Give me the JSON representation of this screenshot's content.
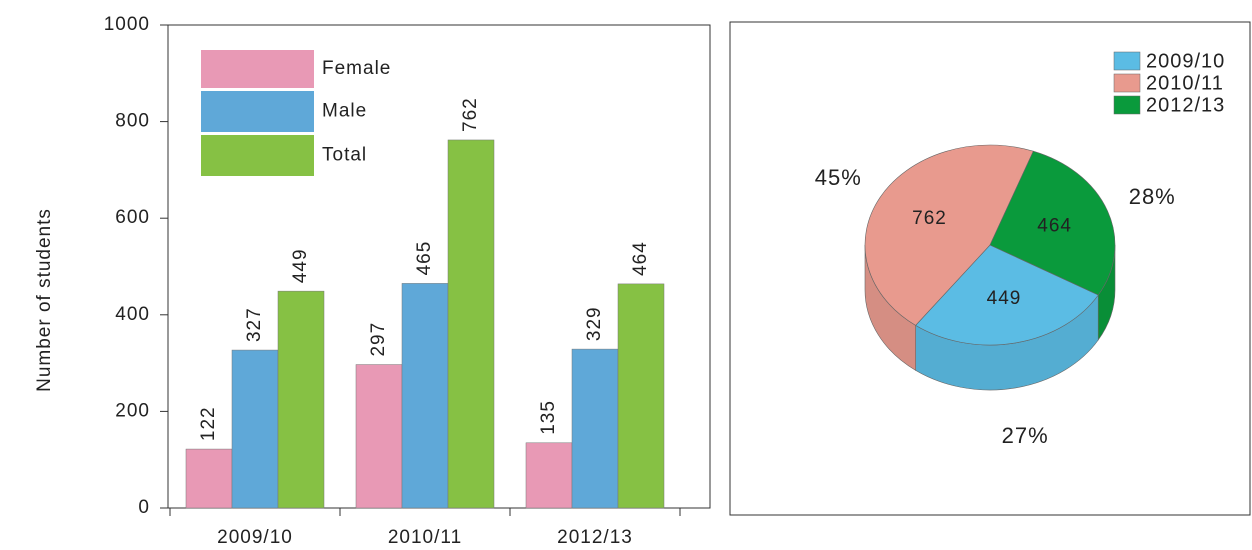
{
  "chart_data": [
    {
      "type": "bar",
      "y_label": "Number of students",
      "categories": [
        "2009/10",
        "2010/11",
        "2012/13"
      ],
      "series": [
        {
          "name": "Female",
          "color": "#e899b5",
          "values": [
            122,
            297,
            135
          ]
        },
        {
          "name": "Male",
          "color": "#5fa8d8",
          "values": [
            327,
            465,
            329
          ]
        },
        {
          "name": "Total",
          "color": "#86c144",
          "values": [
            449,
            762,
            464
          ]
        }
      ],
      "ylim": [
        0,
        1000
      ],
      "yticks": [
        0,
        200,
        400,
        600,
        800,
        1000
      ],
      "legend": "top-left"
    },
    {
      "type": "pie",
      "categories": [
        "2009/10",
        "2010/11",
        "2012/13"
      ],
      "values": [
        449,
        762,
        464
      ],
      "percent_labels": [
        "27%",
        "45%",
        "28%"
      ],
      "colors": [
        "#5bbce4",
        "#e89a8e",
        "#0a9a3c"
      ],
      "legend": "top-right"
    }
  ]
}
